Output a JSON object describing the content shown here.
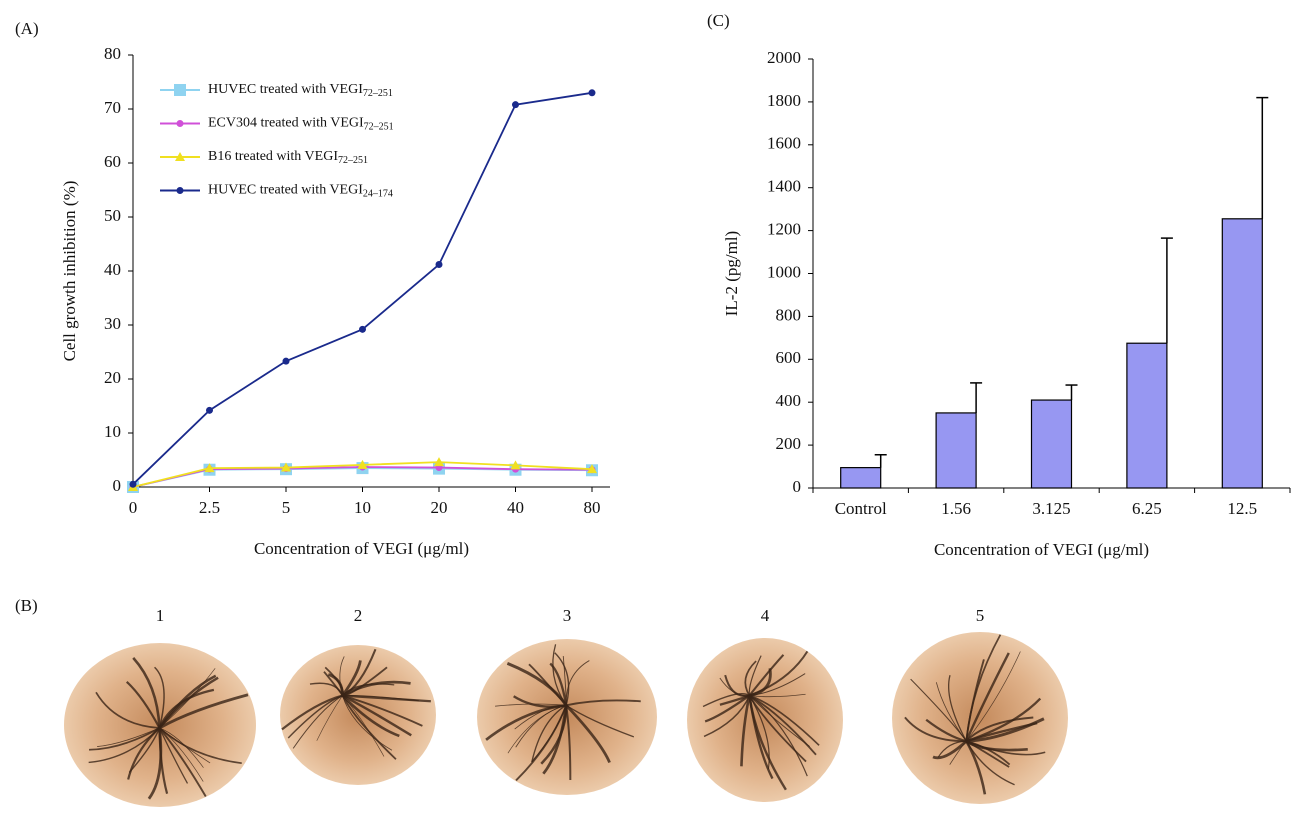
{
  "chart_data": [
    {
      "type": "line",
      "panel": "(A)",
      "ylabel": "Cell growth inhibition (%)",
      "xlabel": "Concentration of VEGI (μg/ml)",
      "categories": [
        "0",
        "2.5",
        "5",
        "10",
        "20",
        "40",
        "80"
      ],
      "series": [
        {
          "name": "HUVEC treated with VEGI72–251",
          "color": "#8fd3f0",
          "marker": "square",
          "values": [
            0,
            3.2,
            3.3,
            3.5,
            3.4,
            3.2,
            3.1
          ]
        },
        {
          "name": "ECV304 treated with VEGI72–251",
          "color": "#d050d8",
          "marker": "circle",
          "values": [
            0,
            3.3,
            3.4,
            3.7,
            3.6,
            3.3,
            3.2
          ]
        },
        {
          "name": "B16 treated with VEGI72–251",
          "color": "#f0e020",
          "marker": "triangle",
          "values": [
            0,
            3.5,
            3.6,
            4.1,
            4.6,
            4.0,
            3.3
          ]
        },
        {
          "name": "HUVEC treated with VEGI24–174",
          "color": "#1a2a8c",
          "marker": "circle",
          "values": [
            0.5,
            14.2,
            23.3,
            29.2,
            41.2,
            70.8,
            73.0
          ]
        }
      ],
      "ylim": [
        0,
        80
      ],
      "yticks": [
        0,
        10,
        20,
        30,
        40,
        50,
        60,
        70,
        80
      ],
      "legend": "upper left"
    },
    {
      "type": "bar",
      "panel": "(C)",
      "ylabel": "IL-2 (pg/ml)",
      "xlabel": "Concentration of VEGI (μg/ml)",
      "categories": [
        "Control",
        "1.56",
        "3.125",
        "6.25",
        "12.5"
      ],
      "values": [
        95,
        350,
        410,
        675,
        1255
      ],
      "errors": [
        60,
        140,
        70,
        490,
        565
      ],
      "color": "#9797f2",
      "ylim": [
        0,
        2000
      ],
      "yticks": [
        0,
        200,
        400,
        600,
        800,
        1000,
        1200,
        1400,
        1600,
        1800,
        2000
      ]
    }
  ],
  "panel_b": {
    "label": "(B)",
    "images": [
      "1",
      "2",
      "3",
      "4",
      "5"
    ]
  }
}
